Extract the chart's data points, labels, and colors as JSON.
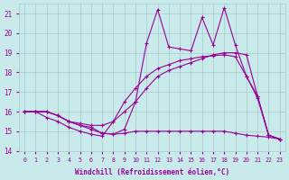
{
  "xlabel": "Windchill (Refroidissement éolien,°C)",
  "background_color": "#c8eaea",
  "grid_color": "#aacaca",
  "line_color": "#990099",
  "xlim": [
    -0.5,
    23.5
  ],
  "ylim": [
    14,
    21.5
  ],
  "yticks": [
    14,
    15,
    16,
    17,
    18,
    19,
    20,
    21
  ],
  "xticks": [
    0,
    1,
    2,
    3,
    4,
    5,
    6,
    7,
    8,
    9,
    10,
    11,
    12,
    13,
    14,
    15,
    16,
    17,
    18,
    19,
    20,
    21,
    22,
    23
  ],
  "series1_x": [
    0,
    1,
    2,
    3,
    4,
    5,
    6,
    7,
    8,
    9,
    10,
    11,
    12,
    13,
    14,
    15,
    16,
    17,
    18,
    19,
    20,
    21,
    22,
    23
  ],
  "series1_y": [
    16.0,
    16.0,
    15.7,
    15.5,
    15.2,
    15.0,
    14.85,
    14.75,
    15.5,
    16.5,
    17.2,
    17.8,
    18.2,
    18.4,
    18.6,
    18.7,
    18.8,
    18.85,
    18.9,
    18.8,
    17.8,
    16.8,
    14.8,
    14.6
  ],
  "series2_x": [
    0,
    1,
    2,
    3,
    4,
    5,
    6,
    7,
    8,
    9,
    10,
    11,
    12,
    13,
    14,
    15,
    16,
    17,
    18,
    19,
    20,
    21,
    22,
    23
  ],
  "series2_y": [
    16.0,
    16.0,
    16.0,
    15.8,
    15.5,
    15.3,
    15.2,
    14.9,
    14.85,
    15.1,
    16.5,
    19.5,
    21.2,
    19.3,
    19.2,
    19.1,
    20.8,
    19.4,
    21.3,
    19.4,
    17.8,
    16.7,
    14.8,
    14.6
  ],
  "series3_x": [
    0,
    1,
    2,
    3,
    4,
    5,
    6,
    7,
    8,
    9,
    10,
    11,
    12,
    13,
    14,
    15,
    16,
    17,
    18,
    19,
    20,
    21,
    22,
    23
  ],
  "series3_y": [
    16.0,
    16.0,
    16.0,
    15.8,
    15.5,
    15.4,
    15.3,
    15.3,
    15.5,
    16.0,
    16.5,
    17.2,
    17.8,
    18.1,
    18.3,
    18.5,
    18.7,
    18.9,
    19.0,
    19.0,
    18.9,
    16.8,
    14.8,
    14.6
  ],
  "series4_x": [
    0,
    1,
    2,
    3,
    4,
    5,
    6,
    7,
    8,
    9,
    10,
    11,
    12,
    13,
    14,
    15,
    16,
    17,
    18,
    19,
    20,
    21,
    22,
    23
  ],
  "series4_y": [
    16.0,
    16.0,
    16.0,
    15.8,
    15.5,
    15.3,
    15.1,
    14.9,
    14.85,
    14.9,
    15.0,
    15.0,
    15.0,
    15.0,
    15.0,
    15.0,
    15.0,
    15.0,
    15.0,
    14.9,
    14.8,
    14.75,
    14.7,
    14.6
  ]
}
